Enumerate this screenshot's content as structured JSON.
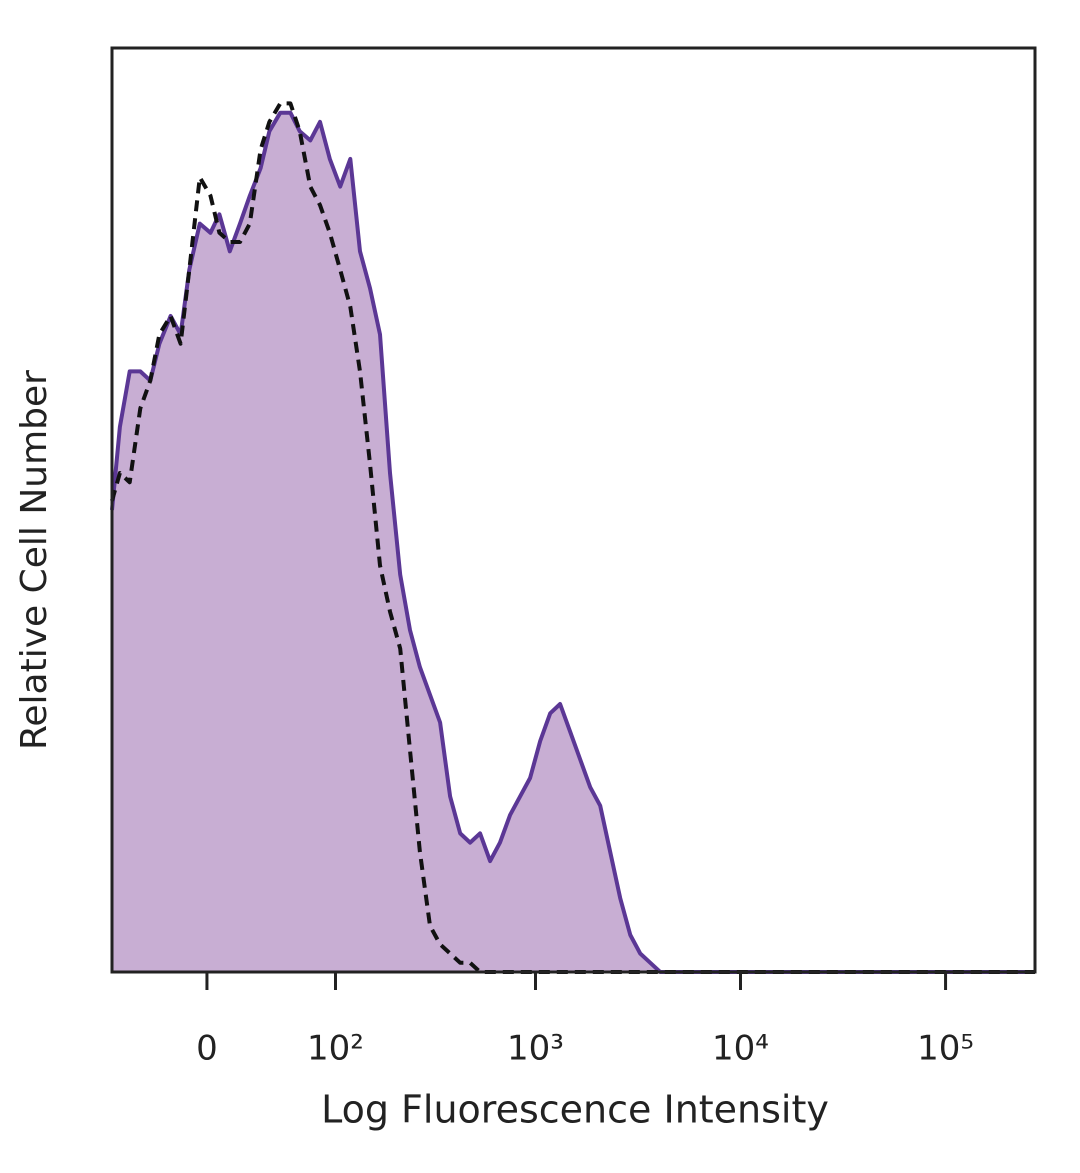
{
  "chart_data": {
    "type": "area",
    "x_label": "Log Fluorescence Intensity",
    "y_label": "Relative Cell Number",
    "xscale": "asinh",
    "xlim": [
      -64,
      273000
    ],
    "ylim": [
      0,
      100
    ],
    "xticks": [
      0,
      {
        "value": 100,
        "label": "10²"
      },
      {
        "value": 1000,
        "label": "10³"
      },
      {
        "value": 10000,
        "label": "10⁴"
      },
      {
        "value": 100000,
        "label": "10⁵"
      }
    ],
    "x": [
      -64,
      -57,
      -49,
      -41,
      -34,
      -28,
      -21,
      -15,
      -10,
      -4,
      2,
      7,
      13,
      19,
      25,
      32,
      38,
      46,
      54,
      62,
      72,
      82,
      93,
      106,
      120,
      135,
      152,
      171,
      192,
      216,
      242,
      271,
      304,
      341,
      382,
      428,
      479,
      536,
      600,
      671,
      751,
      841,
      941,
      1054,
      1179,
      1319,
      1477,
      1652,
      1848,
      2069,
      2315,
      2590,
      2900,
      3243,
      3630,
      4060,
      11170,
      34400,
      105000,
      273000
    ],
    "series": [
      {
        "color": "#5b3795",
        "fill": "#c8aed3",
        "dashed": false,
        "values": [
          50,
          59,
          65,
          65,
          64,
          68,
          71,
          69,
          76,
          81,
          80,
          82,
          78,
          81,
          84,
          87,
          91,
          93,
          93,
          91,
          90,
          92,
          88,
          85,
          88,
          78,
          74,
          69,
          54,
          43,
          37,
          33,
          30,
          27,
          19,
          15,
          14,
          15,
          12,
          14,
          17,
          19,
          21,
          25,
          28,
          29,
          26,
          23,
          20,
          18,
          13,
          8,
          4,
          2,
          1,
          0,
          0,
          0,
          0,
          0
        ]
      },
      {
        "color": "#111111",
        "dashed": true,
        "values": [
          51,
          54,
          53,
          61,
          64,
          69,
          71,
          68,
          76,
          86,
          84,
          80,
          79,
          79,
          81,
          89,
          92,
          94,
          94,
          91,
          85,
          83,
          80,
          76,
          72,
          65,
          55,
          44,
          39,
          35,
          24,
          13,
          5,
          3,
          2,
          1,
          1,
          0,
          0,
          0,
          0,
          0,
          0,
          0,
          0,
          0,
          0,
          0,
          0,
          0,
          0,
          0,
          0,
          0,
          0,
          0,
          0,
          0,
          0,
          0
        ]
      }
    ]
  }
}
